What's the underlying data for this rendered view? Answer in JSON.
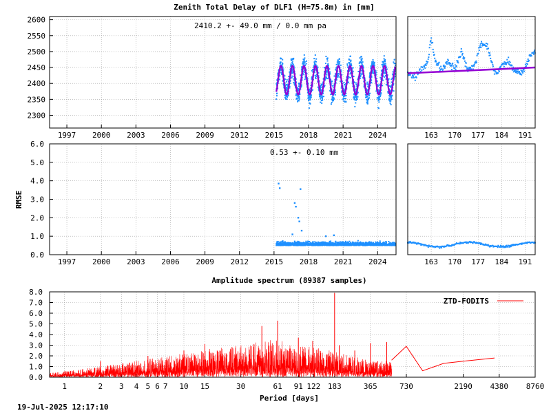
{
  "figure": {
    "title": "Zenith Total Delay of DLF1 (H=75.8m) in [mm]",
    "footer_timestamp": "19-Jul-2025 12:17:10",
    "colors": {
      "data": "#1e90ff",
      "model": "#9400d3",
      "spectrum": "#ff0000",
      "grid": "#a0a0a0",
      "frame": "#000000"
    }
  },
  "chart_data": [
    {
      "id": "ztd_timeseries",
      "type": "scatter",
      "annotation": "2410.2 +-  49.0 mm /  0.0 mm pa",
      "ylim": [
        2260,
        2610
      ],
      "yticks": [
        "2600",
        "2550",
        "2500",
        "2450",
        "2400",
        "2350",
        "2300"
      ],
      "xlim": [
        1995.5,
        2025.6
      ],
      "xticks": [
        "1997",
        "2000",
        "2003",
        "2006",
        "2009",
        "2012",
        "2015",
        "2018",
        "2021",
        "2024"
      ],
      "data_start": 2015.2,
      "series": [
        {
          "kind": "points",
          "mean": 2410,
          "seasonal_amplitude": 45,
          "scatter_sd": 40
        },
        {
          "kind": "model",
          "mean": 2410,
          "seasonal_amplitude": 45
        }
      ]
    },
    {
      "id": "ztd_recent",
      "type": "scatter",
      "ylim": [
        2260,
        2610
      ],
      "xlim": [
        156,
        194
      ],
      "xticks": [
        "163",
        "170",
        "177",
        "184",
        "191"
      ],
      "trend_line": {
        "x": [
          156,
          194
        ],
        "y": [
          2432,
          2450
        ]
      },
      "values_keypoints": [
        [
          156,
          2430
        ],
        [
          158,
          2420
        ],
        [
          160,
          2440
        ],
        [
          162,
          2470
        ],
        [
          163,
          2545
        ],
        [
          164,
          2480
        ],
        [
          166,
          2440
        ],
        [
          168,
          2470
        ],
        [
          170,
          2445
        ],
        [
          172,
          2500
        ],
        [
          174,
          2440
        ],
        [
          176,
          2460
        ],
        [
          178,
          2525
        ],
        [
          180,
          2510
        ],
        [
          182,
          2430
        ],
        [
          184,
          2455
        ],
        [
          186,
          2470
        ],
        [
          188,
          2440
        ],
        [
          190,
          2430
        ],
        [
          192,
          2475
        ],
        [
          194,
          2500
        ]
      ]
    },
    {
      "id": "rmse_timeseries",
      "type": "scatter",
      "ylabel": "RMSE",
      "annotation": "0.53 +-  0.10 mm",
      "ylim": [
        0,
        6
      ],
      "yticks": [
        "6.0",
        "5.0",
        "4.0",
        "3.0",
        "2.0",
        "1.0",
        "0.0"
      ],
      "xlim": [
        1995.5,
        2025.6
      ],
      "xticks": [
        "1997",
        "2000",
        "2003",
        "2006",
        "2009",
        "2012",
        "2015",
        "2018",
        "2021",
        "2024"
      ],
      "data_start": 2015.2,
      "base_level": 0.55,
      "outliers": [
        [
          2015.4,
          3.85
        ],
        [
          2015.5,
          3.6
        ],
        [
          2016.8,
          2.8
        ],
        [
          2016.9,
          2.6
        ],
        [
          2017.3,
          3.55
        ],
        [
          2017.1,
          2.0
        ],
        [
          2017.2,
          1.8
        ],
        [
          2017.4,
          1.3
        ],
        [
          2016.6,
          1.1
        ],
        [
          2019.5,
          1.0
        ],
        [
          2020.2,
          1.05
        ]
      ]
    },
    {
      "id": "rmse_recent",
      "type": "scatter",
      "ylim": [
        0,
        6
      ],
      "xlim": [
        156,
        194
      ],
      "xticks": [
        "163",
        "170",
        "177",
        "184",
        "191"
      ],
      "base_level": 0.55
    },
    {
      "id": "amplitude_spectrum",
      "type": "line",
      "title": "Amplitude spectrum (89387 samples)",
      "xlabel": "Period [days]",
      "xscale": "log",
      "xlim": [
        0.75,
        8760
      ],
      "ylim": [
        0,
        8
      ],
      "yticks": [
        "8.0",
        "7.0",
        "6.0",
        "5.0",
        "4.0",
        "3.0",
        "2.0",
        "1.0",
        "0.0"
      ],
      "xticks": [
        "1",
        "2",
        "3",
        "4",
        "5",
        "6",
        "7",
        "10",
        "15",
        "30",
        "61",
        "91",
        "122",
        "183",
        "365",
        "730",
        "2190",
        "4380",
        "8760"
      ],
      "legend": "ZTD-FODITS",
      "legend_position": "top-right",
      "envelope": [
        [
          0.75,
          0.4
        ],
        [
          1,
          0.6
        ],
        [
          2,
          1.0
        ],
        [
          3,
          1.3
        ],
        [
          5,
          1.7
        ],
        [
          7,
          1.9
        ],
        [
          10,
          2.3
        ],
        [
          15,
          2.6
        ],
        [
          30,
          3.0
        ],
        [
          45,
          3.4
        ],
        [
          61,
          3.6
        ],
        [
          91,
          3.0
        ],
        [
          183,
          2.5
        ],
        [
          365,
          1.5
        ],
        [
          4000,
          1.8
        ]
      ],
      "peaks": [
        [
          2.0,
          1.5
        ],
        [
          5.0,
          2.0
        ],
        [
          10.0,
          2.5
        ],
        [
          15.0,
          3.1
        ],
        [
          45.0,
          4.8
        ],
        [
          61.0,
          5.3
        ],
        [
          91.0,
          3.7
        ],
        [
          120.0,
          3.4
        ],
        [
          183.0,
          7.9
        ],
        [
          200.0,
          3.0
        ],
        [
          270.0,
          2.5
        ],
        [
          365.0,
          3.2
        ],
        [
          500.0,
          3.3
        ]
      ],
      "long_period_line": {
        "x": [
          550,
          730,
          1000,
          1500,
          2190,
          4000
        ],
        "y": [
          1.6,
          2.9,
          0.6,
          1.3,
          1.5,
          1.8
        ]
      }
    }
  ]
}
